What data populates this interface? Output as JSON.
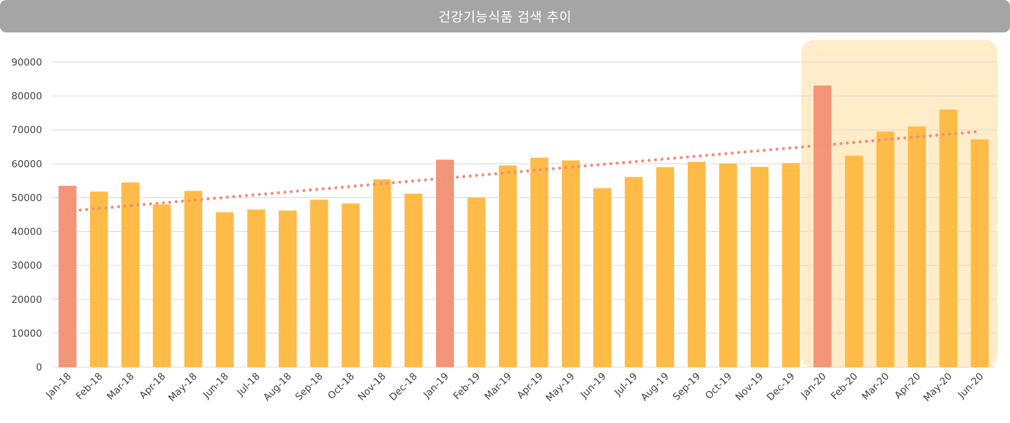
{
  "chart_data": {
    "type": "bar",
    "title": "건강기능식품 검색 추이",
    "categories": [
      "Jan-18",
      "Feb-18",
      "Mar-18",
      "Apr-18",
      "May-18",
      "Jun-18",
      "Jul-18",
      "Aug-18",
      "Sep-18",
      "Oct-18",
      "Nov-18",
      "Dec-18",
      "Jan-19",
      "Feb-19",
      "Mar-19",
      "Apr-19",
      "May-19",
      "Jun-19",
      "Jul-19",
      "Aug-19",
      "Sep-19",
      "Oct-19",
      "Nov-19",
      "Dec-19",
      "Jan-20",
      "Feb-20",
      "Mar-20",
      "Apr-20",
      "May-20",
      "Jun-20"
    ],
    "values": [
      53500,
      51800,
      54500,
      48000,
      52000,
      45700,
      46500,
      46200,
      49400,
      48300,
      55400,
      51200,
      61200,
      50100,
      59500,
      61800,
      61000,
      52800,
      56100,
      59000,
      60600,
      60100,
      59100,
      60200,
      83100,
      62400,
      69500,
      71000,
      76000,
      67200
    ],
    "highlight_categories": [
      "Jan-18",
      "Jan-19",
      "Jan-20"
    ],
    "highlight_range": [
      "Jan-20",
      "Jun-20"
    ],
    "trendline": {
      "type": "linear",
      "style": "dotted",
      "color": "#f0917c"
    },
    "ylim": [
      0,
      90000
    ],
    "yticks": [
      0,
      10000,
      20000,
      30000,
      40000,
      50000,
      60000,
      70000,
      80000,
      90000
    ],
    "xlabel": "",
    "ylabel": "",
    "grid": true,
    "legend": "none"
  },
  "colors": {
    "bar": "#ffbb47",
    "highlight_bar": "#f29579",
    "highlight_band": "#ffecc9",
    "trend": "#f0917c",
    "grid": "#d9d9d9",
    "axis_text": "#404040",
    "title_bar": "#a5a5a5",
    "title_text": "#ffffff"
  }
}
